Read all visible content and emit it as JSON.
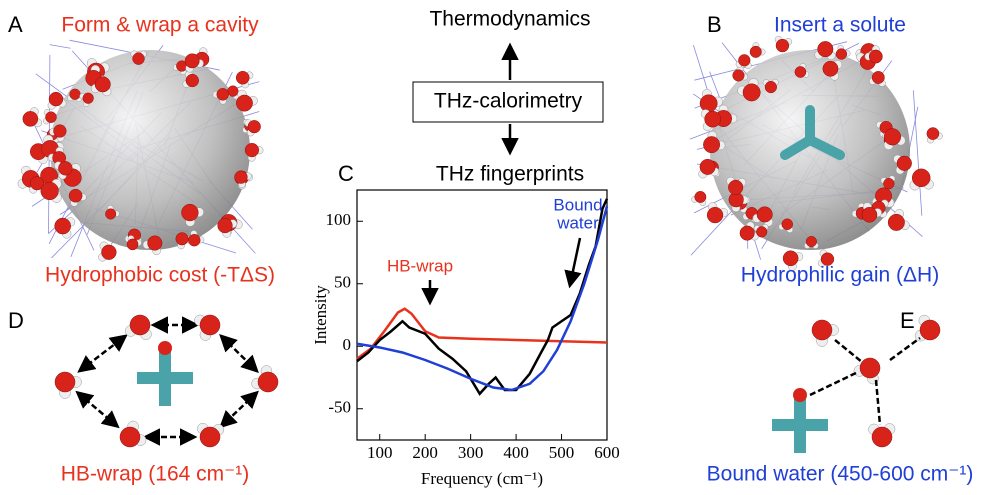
{
  "panels": {
    "a": {
      "label": "A",
      "title": "Form & wrap a cavity",
      "caption": "Hydrophobic cost (-TΔS)"
    },
    "b": {
      "label": "B",
      "title": "Insert a solute",
      "caption": "Hydrophilic gain (ΔH)"
    },
    "c": {
      "label": "C"
    },
    "d": {
      "label": "D",
      "caption": "HB-wrap (164 cm⁻¹)"
    },
    "e": {
      "label": "E",
      "caption": "Bound water (450-600 cm⁻¹)"
    }
  },
  "scheme": {
    "top": "Thermodynamics",
    "box": "THz-calorimetry",
    "bottom": "THz fingerprints"
  },
  "chart_data": {
    "type": "line",
    "x_label": "Frequency (cm⁻¹)",
    "y_label": "Intensity",
    "xlim": [
      50,
      600
    ],
    "xticks": [
      100,
      200,
      300,
      400,
      500,
      600
    ],
    "ylim": [
      -75,
      125
    ],
    "yticks": [
      -50,
      0,
      50,
      100
    ],
    "annotations": [
      {
        "text": "HB-wrap",
        "color": "#e8321e"
      },
      {
        "text": "Bound",
        "color": "#1f3fd6"
      },
      {
        "text": "water",
        "color": "#1f3fd6"
      }
    ],
    "series": [
      {
        "color": "#e8321e",
        "x": [
          50,
          80,
          110,
          140,
          155,
          170,
          200,
          230,
          300,
          400,
          500,
          600
        ],
        "values": [
          -10,
          -2,
          12,
          27,
          30,
          26,
          12,
          7,
          6,
          5,
          4,
          3
        ]
      },
      {
        "color": "#000000",
        "x": [
          50,
          75,
          100,
          125,
          150,
          165,
          200,
          230,
          260,
          290,
          320,
          340,
          355,
          375,
          400,
          430,
          455,
          470,
          480,
          500,
          520,
          540,
          560,
          575,
          590,
          600
        ],
        "values": [
          -12,
          -5,
          5,
          12,
          20,
          15,
          10,
          -2,
          -10,
          -20,
          -38,
          -30,
          -25,
          -35,
          -35,
          -22,
          -5,
          5,
          15,
          20,
          25,
          42,
          65,
          80,
          110,
          118
        ]
      },
      {
        "color": "#1f3fd6",
        "x": [
          50,
          100,
          150,
          200,
          250,
          300,
          350,
          390,
          430,
          460,
          490,
          520,
          550,
          580,
          600
        ],
        "values": [
          2,
          -1,
          -5,
          -11,
          -18,
          -26,
          -33,
          -35,
          -30,
          -20,
          -3,
          20,
          50,
          85,
          112
        ]
      }
    ]
  }
}
